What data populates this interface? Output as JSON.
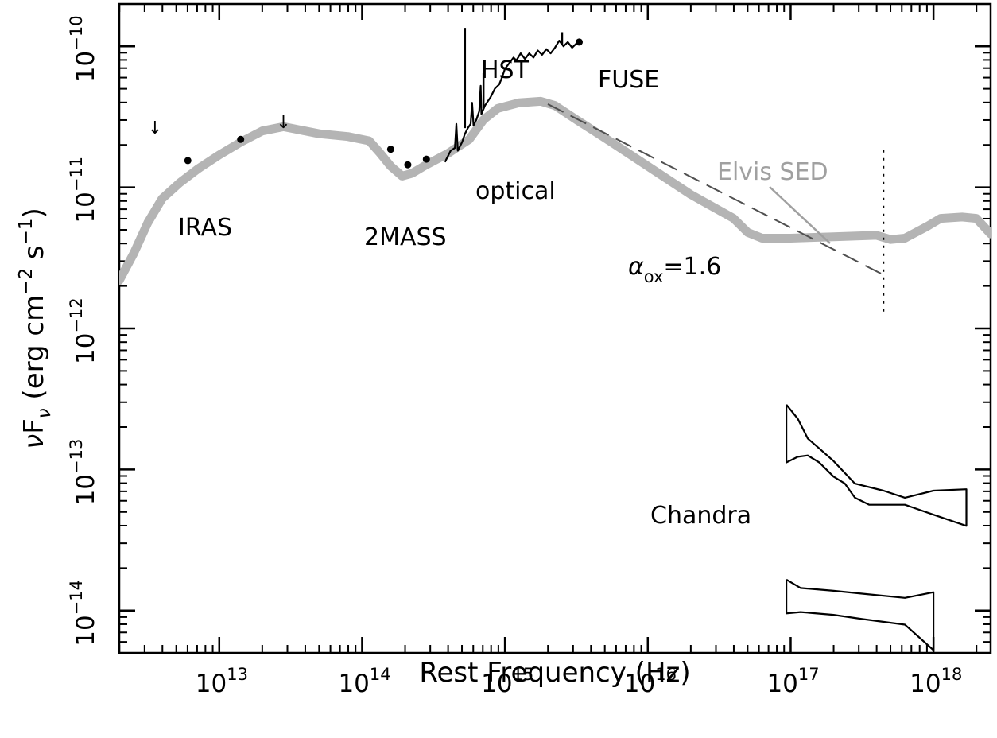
{
  "chart_data": {
    "type": "line",
    "title": "",
    "xlabel": "Rest Frequency (Hz)",
    "ylabel": {
      "nu": "ν",
      "F": "F",
      "sub": "ν",
      "units_open": " (erg cm",
      "exp1": "−2",
      "mid": " s",
      "exp2": "−1",
      "close": ")"
    },
    "xscale": "log",
    "yscale": "log",
    "xlim_log10": [
      12.3,
      18.4
    ],
    "ylim_log10": [
      -14.3,
      -9.7
    ],
    "x_ticks": [
      {
        "base": "10",
        "exp": "13",
        "log": 13
      },
      {
        "base": "10",
        "exp": "14",
        "log": 14
      },
      {
        "base": "10",
        "exp": "15",
        "log": 15
      },
      {
        "base": "10",
        "exp": "16",
        "log": 16
      },
      {
        "base": "10",
        "exp": "17",
        "log": 17
      },
      {
        "base": "10",
        "exp": "18",
        "log": 18
      }
    ],
    "y_ticks": [
      {
        "base": "10",
        "exp": "−10",
        "log": -10
      },
      {
        "base": "10",
        "exp": "−11",
        "log": -11
      },
      {
        "base": "10",
        "exp": "−12",
        "log": -12
      },
      {
        "base": "10",
        "exp": "−13",
        "log": -13
      },
      {
        "base": "10",
        "exp": "−14",
        "log": -14
      }
    ],
    "colors": {
      "elvis": "#b4b4b4",
      "data": "#000000",
      "dashed": "#505050",
      "elvis_label": "#a0a0a0"
    },
    "series": [
      {
        "name": "Elvis SED",
        "style": "thick-gray",
        "points_log": [
          [
            12.3,
            -11.66
          ],
          [
            12.4,
            -11.47
          ],
          [
            12.5,
            -11.25
          ],
          [
            12.6,
            -11.08
          ],
          [
            12.72,
            -10.97
          ],
          [
            12.85,
            -10.87
          ],
          [
            13.0,
            -10.77
          ],
          [
            13.15,
            -10.68
          ],
          [
            13.3,
            -10.6
          ],
          [
            13.45,
            -10.57
          ],
          [
            13.55,
            -10.59
          ],
          [
            13.7,
            -10.62
          ],
          [
            13.9,
            -10.64
          ],
          [
            14.05,
            -10.67
          ],
          [
            14.12,
            -10.75
          ],
          [
            14.2,
            -10.85
          ],
          [
            14.28,
            -10.92
          ],
          [
            14.35,
            -10.9
          ],
          [
            14.45,
            -10.84
          ],
          [
            14.6,
            -10.76
          ],
          [
            14.75,
            -10.66
          ],
          [
            14.85,
            -10.52
          ],
          [
            14.95,
            -10.44
          ],
          [
            15.1,
            -10.4
          ],
          [
            15.25,
            -10.39
          ],
          [
            15.35,
            -10.42
          ],
          [
            15.5,
            -10.52
          ],
          [
            15.7,
            -10.65
          ],
          [
            16.0,
            -10.85
          ],
          [
            16.3,
            -11.05
          ],
          [
            16.6,
            -11.22
          ],
          [
            16.7,
            -11.32
          ],
          [
            16.8,
            -11.36
          ],
          [
            17.0,
            -11.36
          ],
          [
            17.3,
            -11.35
          ],
          [
            17.6,
            -11.34
          ],
          [
            17.7,
            -11.37
          ],
          [
            17.8,
            -11.36
          ],
          [
            17.95,
            -11.28
          ],
          [
            18.05,
            -11.22
          ],
          [
            18.2,
            -11.21
          ],
          [
            18.3,
            -11.22
          ],
          [
            18.4,
            -11.33
          ]
        ]
      },
      {
        "name": "HST",
        "style": "thin-black",
        "points_log": [
          [
            14.58,
            -10.82
          ],
          [
            14.62,
            -10.74
          ],
          [
            14.65,
            -10.72
          ],
          [
            14.66,
            -10.55
          ],
          [
            14.67,
            -10.74
          ],
          [
            14.7,
            -10.68
          ],
          [
            14.72,
            -10.62
          ],
          [
            14.74,
            -10.58
          ],
          [
            14.76,
            -10.55
          ],
          [
            14.77,
            -10.4
          ],
          [
            14.78,
            -10.56
          ],
          [
            14.8,
            -10.52
          ],
          [
            14.82,
            -10.46
          ],
          [
            14.83,
            -10.28
          ],
          [
            14.835,
            -10.48
          ],
          [
            14.86,
            -10.42
          ],
          [
            14.9,
            -10.36
          ],
          [
            14.93,
            -10.3
          ],
          [
            14.96,
            -10.27
          ],
          [
            14.98,
            -10.22
          ],
          [
            15.0,
            -10.16
          ],
          [
            15.03,
            -10.12
          ],
          [
            15.06,
            -10.08
          ],
          [
            15.08,
            -10.1
          ],
          [
            15.11,
            -10.05
          ],
          [
            15.14,
            -10.09
          ],
          [
            15.17,
            -10.05
          ],
          [
            15.2,
            -10.08
          ],
          [
            15.23,
            -10.03
          ],
          [
            15.26,
            -10.06
          ],
          [
            15.29,
            -10.02
          ],
          [
            15.32,
            -10.05
          ],
          [
            15.35,
            -10.01
          ],
          [
            15.38,
            -9.96
          ],
          [
            15.41,
            -10.0
          ],
          [
            15.44,
            -9.97
          ],
          [
            15.47,
            -10.01
          ],
          [
            15.5,
            -9.98
          ]
        ]
      }
    ],
    "hst_emission_lines": [
      {
        "x": 14.72,
        "base": -10.58,
        "peak": -9.87
      },
      {
        "x": 14.85,
        "base": -10.44,
        "peak": -10.19
      },
      {
        "x": 15.4,
        "base": -9.99,
        "peak": -9.9
      }
    ],
    "photometry_points": [
      {
        "group": "IRAS",
        "x": 12.78,
        "y": -10.81
      },
      {
        "group": "IRAS",
        "x": 13.15,
        "y": -10.66
      },
      {
        "group": "2MASS",
        "x": 14.2,
        "y": -10.73
      },
      {
        "group": "2MASS",
        "x": 14.32,
        "y": -10.84
      },
      {
        "group": "2MASS",
        "x": 14.45,
        "y": -10.8
      },
      {
        "group": "FUSE",
        "x": 15.52,
        "y": -9.97
      }
    ],
    "upper_limits": [
      {
        "x": 12.55,
        "y": -10.62
      },
      {
        "x": 13.45,
        "y": -10.58
      }
    ],
    "alpha_ox_line": {
      "label_prefix": "α",
      "label_sub": "ox",
      "label_value": "=1.6",
      "from": [
        15.3,
        -10.41
      ],
      "to": [
        17.65,
        -11.62
      ]
    },
    "vertical_dotted": {
      "x": 17.65,
      "y_range": [
        -11.88,
        -10.72
      ]
    },
    "chandra_bowties": [
      {
        "upper": [
          [
            16.97,
            -12.54
          ],
          [
            17.05,
            -12.64
          ],
          [
            17.12,
            -12.78
          ],
          [
            17.2,
            -12.85
          ],
          [
            17.3,
            -12.94
          ],
          [
            17.45,
            -13.1
          ],
          [
            17.65,
            -13.15
          ],
          [
            17.8,
            -13.2
          ],
          [
            18.0,
            -13.15
          ],
          [
            18.23,
            -13.14
          ]
        ],
        "lower": [
          [
            16.97,
            -12.95
          ],
          [
            17.05,
            -12.91
          ],
          [
            17.12,
            -12.9
          ],
          [
            17.2,
            -12.95
          ],
          [
            17.3,
            -13.05
          ],
          [
            17.38,
            -13.1
          ],
          [
            17.45,
            -13.2
          ],
          [
            17.55,
            -13.25
          ],
          [
            17.65,
            -13.25
          ],
          [
            17.8,
            -13.25
          ],
          [
            18.0,
            -13.32
          ],
          [
            18.23,
            -13.4
          ]
        ]
      },
      {
        "upper": [
          [
            16.97,
            -13.78
          ],
          [
            17.07,
            -13.84
          ],
          [
            17.3,
            -13.86
          ],
          [
            17.5,
            -13.88
          ],
          [
            17.8,
            -13.91
          ],
          [
            18.0,
            -13.87
          ]
        ],
        "lower": [
          [
            16.97,
            -14.02
          ],
          [
            17.07,
            -14.01
          ],
          [
            17.3,
            -14.03
          ],
          [
            17.5,
            -14.06
          ],
          [
            17.8,
            -14.1
          ],
          [
            18.0,
            -14.28
          ]
        ]
      }
    ],
    "annotations": {
      "iras": "IRAS",
      "twomass": "2MASS",
      "hst": "HST",
      "fuse": "FUSE",
      "optical": "optical",
      "elvis": "Elvis SED",
      "chandra": "Chandra"
    },
    "arrow_glyph": "↓",
    "grid": false,
    "legend": "none"
  }
}
